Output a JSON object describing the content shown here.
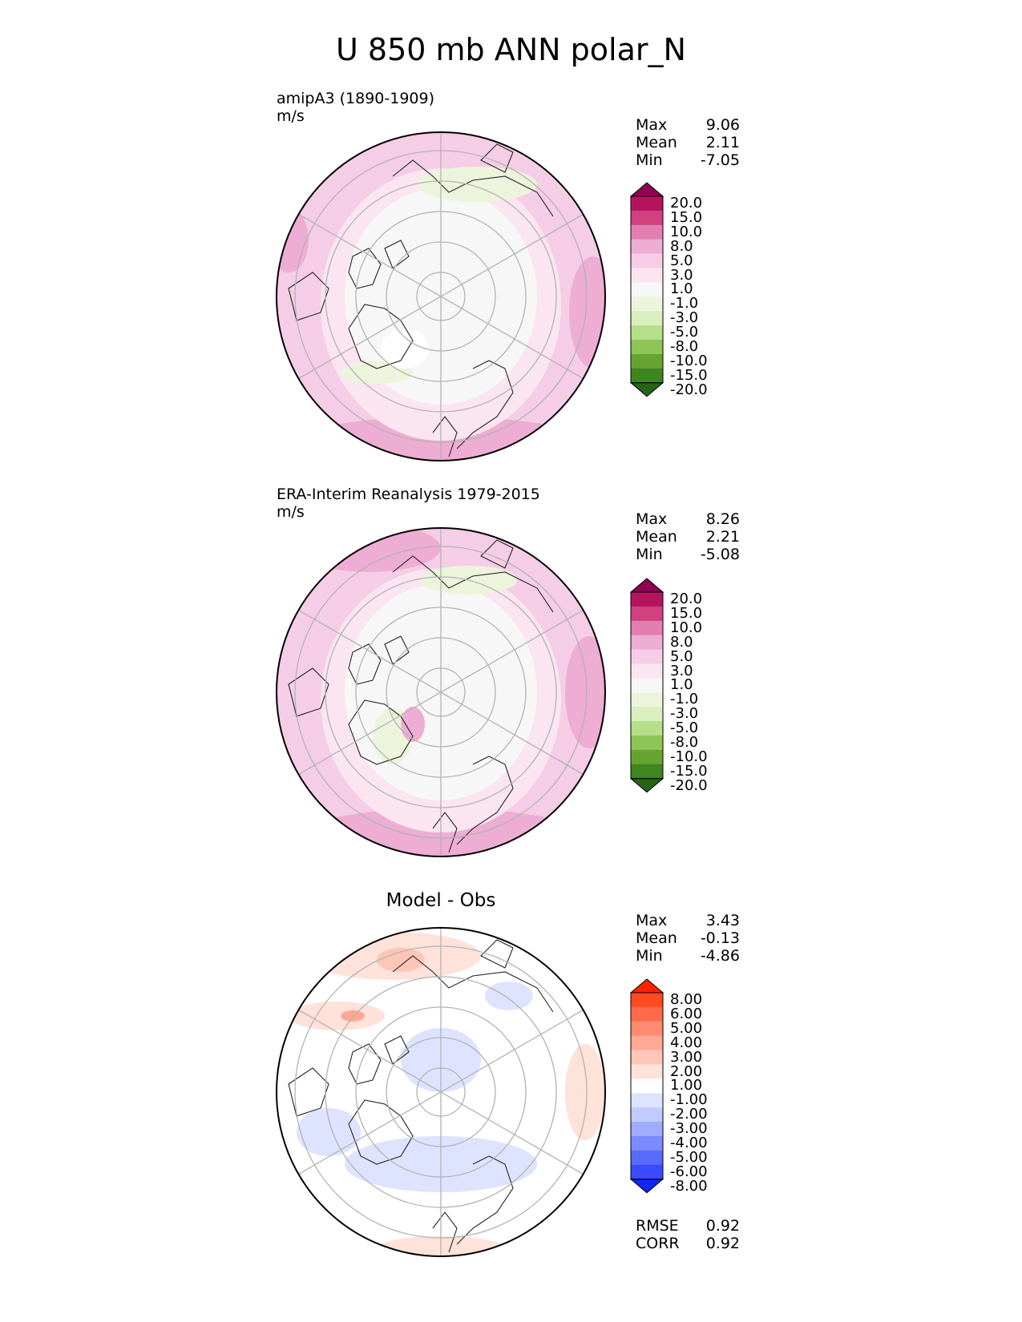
{
  "title": "U 850 mb ANN polar_N",
  "panels": [
    {
      "title": "amipA3 (1890-1909)",
      "units": "m/s",
      "stats": {
        "max_label": "Max",
        "max": "9.06",
        "mean_label": "Mean",
        "mean": "2.11",
        "min_label": "Min",
        "min": "-7.05"
      },
      "colorbar": {
        "ticks": [
          "20.0",
          "15.0",
          "10.0",
          "8.0",
          "5.0",
          "3.0",
          "1.0",
          "-1.0",
          "-3.0",
          "-5.0",
          "-8.0",
          "-10.0",
          "-15.0",
          "-20.0"
        ],
        "colors": [
          "#8e0152",
          "#b5135f",
          "#d0417d",
          "#e27fb0",
          "#eeadd3",
          "#f5cde6",
          "#fae5f1",
          "#f7f7f7",
          "#ecf5dc",
          "#d9efbf",
          "#b6df89",
          "#8ec557",
          "#66a432",
          "#3f8520",
          "#276419"
        ]
      }
    },
    {
      "title": "ERA-Interim Reanalysis 1979-2015",
      "units": "m/s",
      "stats": {
        "max_label": "Max",
        "max": "8.26",
        "mean_label": "Mean",
        "mean": "2.21",
        "min_label": "Min",
        "min": "-5.08"
      },
      "colorbar": {
        "ticks": [
          "20.0",
          "15.0",
          "10.0",
          "8.0",
          "5.0",
          "3.0",
          "1.0",
          "-1.0",
          "-3.0",
          "-5.0",
          "-8.0",
          "-10.0",
          "-15.0",
          "-20.0"
        ],
        "colors": [
          "#8e0152",
          "#b5135f",
          "#d0417d",
          "#e27fb0",
          "#eeadd3",
          "#f5cde6",
          "#fae5f1",
          "#f7f7f7",
          "#ecf5dc",
          "#d9efbf",
          "#b6df89",
          "#8ec557",
          "#66a432",
          "#3f8520",
          "#276419"
        ]
      }
    },
    {
      "title": "Model - Obs",
      "stats": {
        "max_label": "Max",
        "max": "3.43",
        "mean_label": "Mean",
        "mean": "-0.13",
        "min_label": "Min",
        "min": "-4.86"
      },
      "metrics": {
        "rmse_label": "RMSE",
        "rmse": "0.92",
        "corr_label": "CORR",
        "corr": "0.92"
      },
      "colorbar": {
        "ticks": [
          "8.00",
          "6.00",
          "5.00",
          "4.00",
          "3.00",
          "2.00",
          "1.00",
          "-1.00",
          "-2.00",
          "-3.00",
          "-4.00",
          "-5.00",
          "-6.00",
          "-8.00"
        ],
        "colors": [
          "#ff2200",
          "#ff4a22",
          "#ff6b4a",
          "#ff8b70",
          "#ffa896",
          "#ffc6b8",
          "#ffe2da",
          "#ffffff",
          "#dee4ff",
          "#c2cbff",
          "#a0acff",
          "#7c8bff",
          "#5a6aff",
          "#3a4bff",
          "#0a28ff"
        ]
      }
    }
  ]
}
